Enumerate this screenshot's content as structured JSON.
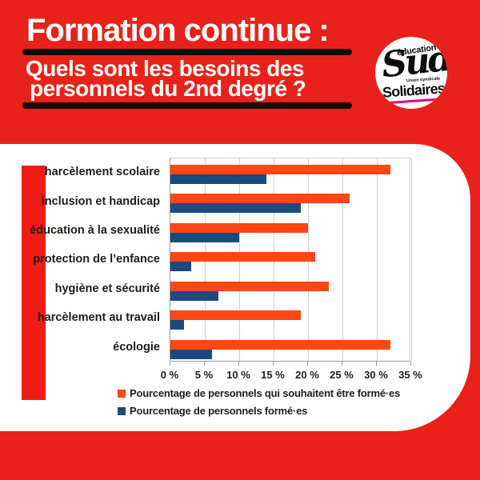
{
  "colors": {
    "background_red": "#e8221a",
    "accent_bar_red": "#ed1c16",
    "title_white": "#ffffff",
    "rule_black": "#0d0d0d",
    "orange_series": "#ff4713",
    "blue_series": "#1b4a7e",
    "logo_pink": "#e6007e",
    "gridline_gray": "#d0d0d0",
    "chart_text": "#1d1d1b"
  },
  "header": {
    "title": "Formation continue :",
    "subtitle_line1": "Quels sont les besoins des",
    "subtitle_line2": "personnels du 2nd degré ?"
  },
  "logo": {
    "top_text": "éducation",
    "main_text": "Sud",
    "small_text": "Union syndicale",
    "bottom_text": "Solidaires"
  },
  "chart_data": {
    "type": "bar",
    "orientation": "horizontal",
    "categories": [
      "harcèlement scolaire",
      "inclusion et handicap",
      "éducation à la sexualité",
      "protection de l’enfance",
      "hygiène et sécurité",
      "harcèlement au travail",
      "écologie"
    ],
    "series": [
      {
        "name": "Pourcentage de personnels qui souhaitent être formé·es",
        "color": "#ff4713",
        "values": [
          32,
          26,
          20,
          21,
          23,
          19,
          32
        ]
      },
      {
        "name": "Pourcentage de personnels formé·es",
        "color": "#1b4a7e",
        "values": [
          14,
          19,
          10,
          3,
          7,
          2,
          6
        ]
      }
    ],
    "xlim": [
      0,
      35
    ],
    "xticks": [
      0,
      5,
      10,
      15,
      20,
      25,
      30,
      35
    ],
    "xtick_labels": [
      "0 %",
      "5 %",
      "10 %",
      "15 %",
      "20 %",
      "25 %",
      "30 %",
      "35 %"
    ],
    "grid": true,
    "legend_position": "bottom"
  }
}
